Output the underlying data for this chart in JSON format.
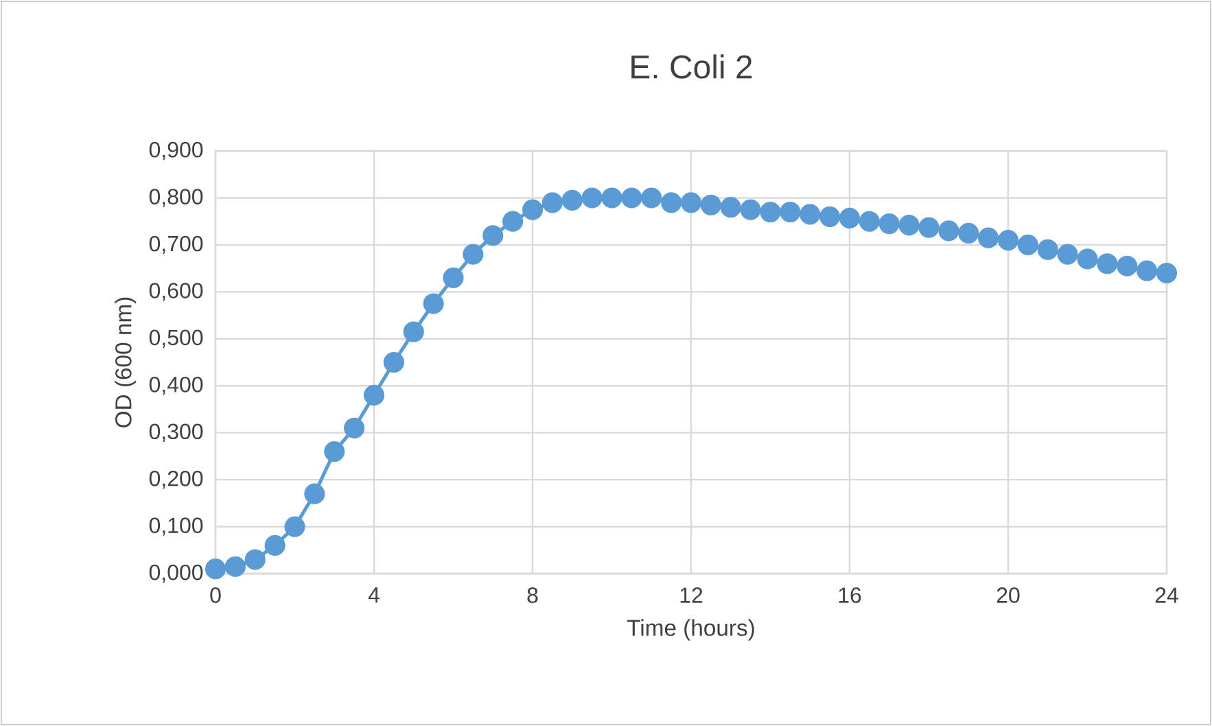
{
  "chart_data": {
    "type": "line",
    "title": "E. Coli 2",
    "xlabel": "Time (hours)",
    "ylabel": "OD (600 nm)",
    "x": [
      0,
      0.5,
      1,
      1.5,
      2,
      2.5,
      3,
      3.5,
      4,
      4.5,
      5,
      5.5,
      6,
      6.5,
      7,
      7.5,
      8,
      8.5,
      9,
      9.5,
      10,
      10.5,
      11,
      11.5,
      12,
      12.5,
      13,
      13.5,
      14,
      14.5,
      15,
      15.5,
      16,
      16.5,
      17,
      17.5,
      18,
      18.5,
      19,
      19.5,
      20,
      20.5,
      21,
      21.5,
      22,
      22.5,
      23,
      23.5,
      24
    ],
    "series": [
      {
        "color": "#5b9bd5",
        "values": [
          0.01,
          0.015,
          0.03,
          0.06,
          0.1,
          0.17,
          0.26,
          0.31,
          0.38,
          0.45,
          0.515,
          0.575,
          0.63,
          0.68,
          0.72,
          0.75,
          0.775,
          0.79,
          0.795,
          0.8,
          0.8,
          0.8,
          0.8,
          0.79,
          0.79,
          0.785,
          0.78,
          0.775,
          0.77,
          0.77,
          0.765,
          0.76,
          0.757,
          0.75,
          0.745,
          0.742,
          0.737,
          0.73,
          0.725,
          0.715,
          0.71,
          0.7,
          0.69,
          0.68,
          0.67,
          0.66,
          0.655,
          0.645,
          0.64
        ]
      }
    ],
    "xlim": [
      0,
      24
    ],
    "xticks": [
      0,
      4,
      8,
      12,
      16,
      20,
      24
    ],
    "ylim": [
      0,
      0.9
    ],
    "yticks": [
      {
        "value": 0,
        "label": "0,000"
      },
      {
        "value": 0.1,
        "label": "0,100"
      },
      {
        "value": 0.2,
        "label": "0,200"
      },
      {
        "value": 0.3,
        "label": "0,300"
      },
      {
        "value": 0.4,
        "label": "0,400"
      },
      {
        "value": 0.5,
        "label": "0,500"
      },
      {
        "value": 0.6,
        "label": "0,600"
      },
      {
        "value": 0.7,
        "label": "0,700"
      },
      {
        "value": 0.8,
        "label": "0,800"
      },
      {
        "value": 0.9,
        "label": "0,900"
      }
    ],
    "grid": true,
    "marker": "circle",
    "line_style": "solid"
  }
}
